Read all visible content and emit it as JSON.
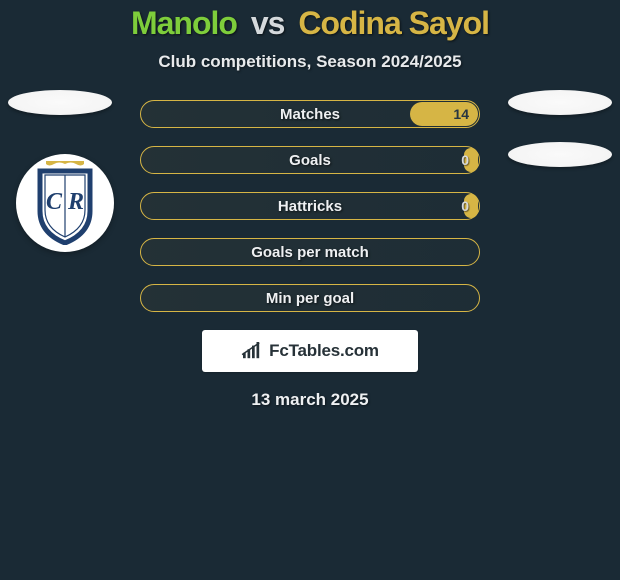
{
  "background_color": "#1a2a35",
  "accent_player1": "#7ecd3b",
  "accent_player2": "#d6b545",
  "title": {
    "player1": "Manolo",
    "vs": "vs",
    "player2": "Codina Sayol",
    "fontsize": 32
  },
  "subtitle": "Club competitions, Season 2024/2025",
  "stats": {
    "bar_border_color": "#d6b545",
    "bar_fill_color": "#d6b545",
    "rows": [
      {
        "label": "Matches",
        "p1": null,
        "p2": "14",
        "p2_fill_pct": 20
      },
      {
        "label": "Goals",
        "p1": null,
        "p2": "0",
        "p2_fill_pct": 4
      },
      {
        "label": "Hattricks",
        "p1": null,
        "p2": "0",
        "p2_fill_pct": 4
      },
      {
        "label": "Goals per match",
        "p1": null,
        "p2": null,
        "p2_fill_pct": 0
      },
      {
        "label": "Min per goal",
        "p1": null,
        "p2": null,
        "p2_fill_pct": 0
      }
    ]
  },
  "badge": {
    "crown_color": "#d6b545",
    "shield_border": "#1f3f6e",
    "shield_fill": "#ffffff",
    "monogram": "CR"
  },
  "attribution": {
    "text": "FcTables.com"
  },
  "date": "13 march 2025"
}
